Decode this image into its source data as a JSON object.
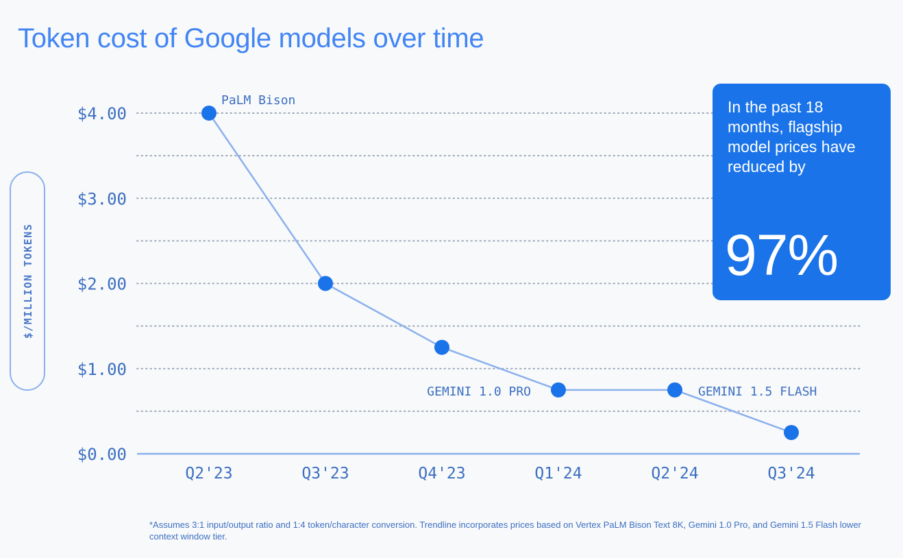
{
  "title": "Token cost of Google models over time",
  "colors": {
    "accent": "#1a73e8",
    "title": "#4285f4",
    "line": "#8ab0ee",
    "label": "#3c6fc2",
    "grid": "#9aa7b8",
    "background": "#f8f9fa"
  },
  "callout": {
    "text": "In the past 18 months, flagship model prices have reduced by",
    "value": "97%"
  },
  "footnote": "*Assumes 3:1 input/output ratio and 1:4 token/character conversion. Trendline incorporates prices based on Vertex PaLM Bison Text 8K, Gemini 1.0 Pro, and Gemini 1.5 Flash lower context window tier.",
  "chart_data": {
    "type": "line",
    "title": "Token cost of Google models over time",
    "ylabel": "$/MILLION TOKENS",
    "xlabel": "",
    "categories": [
      "Q2'23",
      "Q3'23",
      "Q4'23",
      "Q1'24",
      "Q2'24",
      "Q3'24"
    ],
    "values": [
      4.0,
      2.0,
      1.25,
      0.75,
      0.75,
      0.25
    ],
    "ylim": [
      0,
      4
    ],
    "yticks": [
      4,
      3,
      2,
      1,
      0
    ],
    "ytick_labels": [
      "$4.00",
      "$3.00",
      "$2.00",
      "$1.00",
      "$0.00"
    ],
    "grid": true,
    "grid_style": "dotted",
    "point_labels": [
      {
        "index": 0,
        "text": "PaLM Bison",
        "position": "right"
      },
      {
        "index": 3,
        "text": "GEMINI 1.0 PRO",
        "position": "left"
      },
      {
        "index": 4,
        "text": "GEMINI 1.5 FLASH",
        "position": "right"
      }
    ]
  }
}
